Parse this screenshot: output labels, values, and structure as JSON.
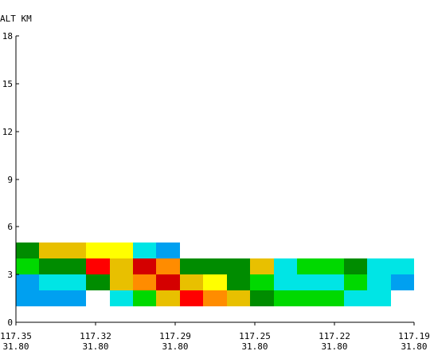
{
  "chart_data": {
    "type": "heatmap",
    "ylabel": "ALT KM",
    "ylim": [
      0,
      18
    ],
    "y_ticks": [
      "18",
      "15",
      "12",
      "9",
      "6",
      "3",
      "0"
    ],
    "x_ticks": [
      {
        "lon": "117.35",
        "lat": "31.80"
      },
      {
        "lon": "117.32",
        "lat": "31.80"
      },
      {
        "lon": "117.29",
        "lat": "31.80"
      },
      {
        "lon": "117.25",
        "lat": "31.80"
      },
      {
        "lon": "117.22",
        "lat": "31.80"
      },
      {
        "lon": "117.19",
        "lat": "31.80"
      }
    ],
    "x_cell_count": 17,
    "layers_km": [
      [
        1.0,
        2.0
      ],
      [
        2.0,
        3.0
      ],
      [
        3.0,
        4.0
      ],
      [
        4.0,
        5.0
      ]
    ],
    "palette": {
      "sky_blue": "#00a0f0",
      "cyan": "#00e5e5",
      "light_green": "#00d900",
      "dark_green": "#008c00",
      "gold": "#e8c000",
      "yellow": "#ffff00",
      "orange": "#ff8c00",
      "red": "#ff0000",
      "dark_red": "#d40000"
    },
    "rows": [
      [
        "sky_blue",
        "sky_blue",
        "sky_blue",
        null,
        "cyan",
        "light_green",
        "gold",
        "red",
        "orange",
        "gold",
        "dark_green",
        "light_green",
        "light_green",
        "light_green",
        "cyan",
        "cyan",
        null
      ],
      [
        "sky_blue",
        "cyan",
        "cyan",
        "dark_green",
        "gold",
        "orange",
        "dark_red",
        "gold",
        "yellow",
        "dark_green",
        "light_green",
        "cyan",
        "cyan",
        "cyan",
        "light_green",
        "cyan",
        "sky_blue"
      ],
      [
        "light_green",
        "dark_green",
        "dark_green",
        "red",
        "gold",
        "dark_red",
        "orange",
        "dark_green",
        "dark_green",
        "dark_green",
        "gold",
        "cyan",
        "light_green",
        "light_green",
        "dark_green",
        "cyan",
        "cyan"
      ],
      [
        "dark_green",
        "gold",
        "gold",
        "yellow",
        "yellow",
        "cyan",
        "sky_blue",
        null,
        null,
        null,
        null,
        null,
        null,
        null,
        null,
        null,
        null
      ]
    ]
  }
}
